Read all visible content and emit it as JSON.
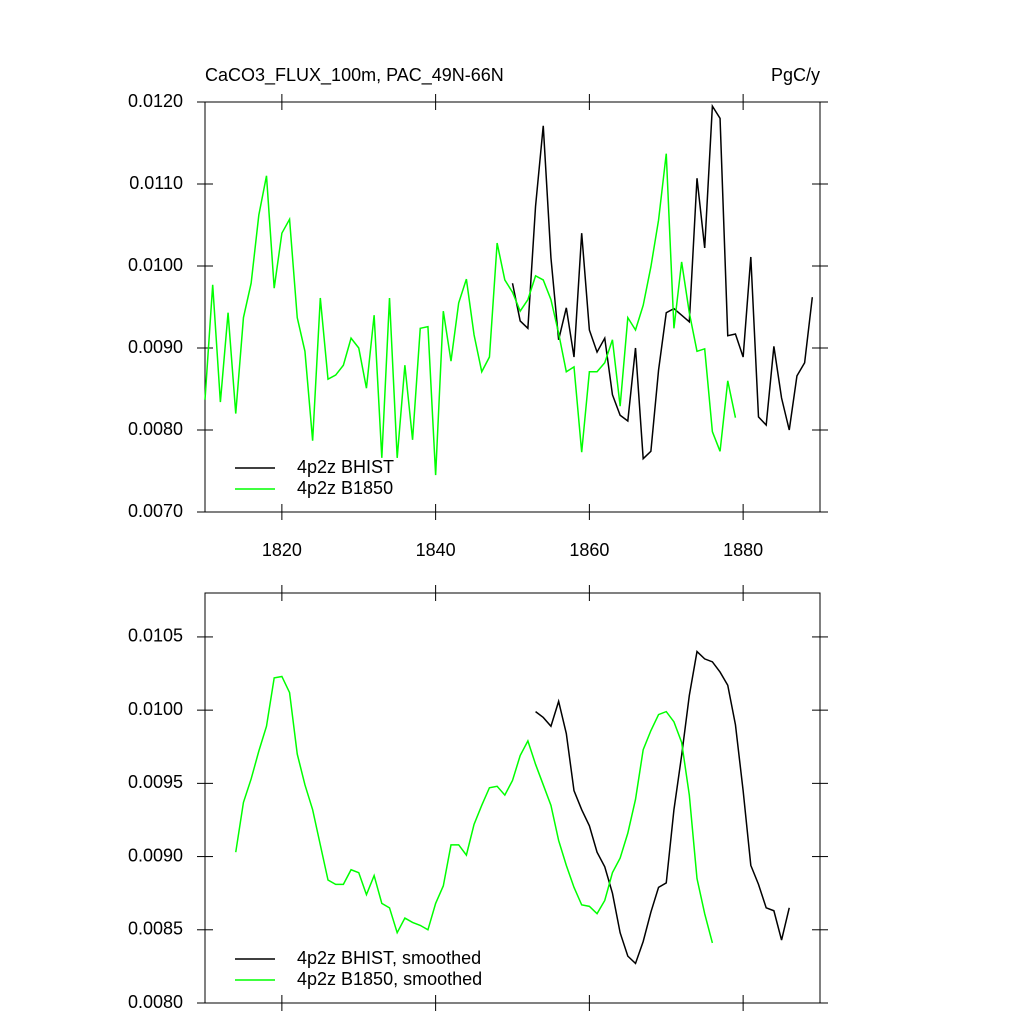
{
  "chart_data": [
    {
      "type": "line",
      "title": "CaCO3_FLUX_100m, PAC_49N-66N",
      "units": "PgC/y",
      "xlim": [
        1810,
        1890
      ],
      "xticks": [
        1820,
        1840,
        1860,
        1880
      ],
      "xtick_labels": true,
      "ylim": [
        0.007,
        0.012
      ],
      "yticks": [
        {
          "value": 0.007,
          "label": "0.0070"
        },
        {
          "value": 0.008,
          "label": "0.0080"
        },
        {
          "value": 0.009,
          "label": "0.0090"
        },
        {
          "value": 0.01,
          "label": "0.0100"
        },
        {
          "value": 0.011,
          "label": "0.0110"
        },
        {
          "value": 0.012,
          "label": "0.0120"
        }
      ],
      "legend": "lower left",
      "series": [
        {
          "name": "4p2z BHIST",
          "color": "#000000",
          "x": [
            1850,
            1851,
            1852,
            1853,
            1854,
            1855,
            1856,
            1857,
            1858,
            1859,
            1860,
            1861,
            1862,
            1863,
            1864,
            1865,
            1866,
            1867,
            1868,
            1869,
            1870,
            1871,
            1872,
            1873,
            1874,
            1875,
            1876,
            1877,
            1878,
            1879,
            1880,
            1881,
            1882,
            1883,
            1884,
            1885,
            1886,
            1887,
            1888,
            1889
          ],
          "values": [
            0.00979,
            0.00933,
            0.00924,
            0.01073,
            0.01171,
            0.0101,
            0.0091,
            0.00949,
            0.00889,
            0.0104,
            0.00922,
            0.00895,
            0.00912,
            0.00843,
            0.00818,
            0.00811,
            0.009,
            0.00765,
            0.00774,
            0.00873,
            0.00943,
            0.00948,
            0.0094,
            0.00932,
            0.01107,
            0.01022,
            0.01195,
            0.0118,
            0.00915,
            0.00917,
            0.00889,
            0.01011,
            0.00816,
            0.00806,
            0.00902,
            0.00839,
            0.008,
            0.00866,
            0.00882,
            0.00962
          ]
        },
        {
          "name": "4p2z B1850",
          "color": "#00ff00",
          "x": [
            1810,
            1811,
            1812,
            1813,
            1814,
            1815,
            1816,
            1817,
            1818,
            1819,
            1820,
            1821,
            1822,
            1823,
            1824,
            1825,
            1826,
            1827,
            1828,
            1829,
            1830,
            1831,
            1832,
            1833,
            1834,
            1835,
            1836,
            1837,
            1838,
            1839,
            1840,
            1841,
            1842,
            1843,
            1844,
            1845,
            1846,
            1847,
            1848,
            1849,
            1850,
            1851,
            1852,
            1853,
            1854,
            1855,
            1856,
            1857,
            1858,
            1859,
            1860,
            1861,
            1862,
            1863,
            1864,
            1865,
            1866,
            1867,
            1868,
            1869,
            1870,
            1871,
            1872,
            1873,
            1874,
            1875,
            1876,
            1877,
            1878,
            1879
          ],
          "values": [
            0.00837,
            0.00977,
            0.00834,
            0.00943,
            0.0082,
            0.00937,
            0.00979,
            0.01062,
            0.0111,
            0.00973,
            0.0104,
            0.01057,
            0.00937,
            0.00896,
            0.00787,
            0.00961,
            0.00862,
            0.00867,
            0.00879,
            0.00912,
            0.009,
            0.00851,
            0.0094,
            0.00766,
            0.00961,
            0.00766,
            0.00879,
            0.00788,
            0.00924,
            0.00926,
            0.00745,
            0.00945,
            0.00884,
            0.00955,
            0.00984,
            0.00916,
            0.00871,
            0.00889,
            0.01028,
            0.00983,
            0.00968,
            0.00945,
            0.00959,
            0.00988,
            0.00983,
            0.00959,
            0.00918,
            0.00871,
            0.00877,
            0.00773,
            0.00871,
            0.00871,
            0.00882,
            0.0091,
            0.00829,
            0.00937,
            0.00922,
            0.00952,
            0.00999,
            0.01056,
            0.01137,
            0.00924,
            0.01005,
            0.00943,
            0.00896,
            0.00899,
            0.00798,
            0.00774,
            0.0086,
            0.00815
          ]
        }
      ]
    },
    {
      "type": "line",
      "xlim": [
        1810,
        1890
      ],
      "xticks": [
        1820,
        1840,
        1860,
        1880
      ],
      "xtick_labels": false,
      "ylim": [
        0.008,
        0.0108
      ],
      "yticks": [
        {
          "value": 0.008,
          "label": "0.0080"
        },
        {
          "value": 0.0085,
          "label": "0.0085"
        },
        {
          "value": 0.009,
          "label": "0.0090"
        },
        {
          "value": 0.0095,
          "label": "0.0095"
        },
        {
          "value": 0.01,
          "label": "0.0100"
        },
        {
          "value": 0.0105,
          "label": "0.0105"
        }
      ],
      "legend": "lower left",
      "series": [
        {
          "name": "4p2z BHIST, smoothed",
          "color": "#000000",
          "x": [
            1853,
            1854,
            1855,
            1856,
            1857,
            1858,
            1859,
            1860,
            1861,
            1862,
            1863,
            1864,
            1865,
            1866,
            1867,
            1868,
            1869,
            1870,
            1871,
            1872,
            1873,
            1874,
            1875,
            1876,
            1877,
            1878,
            1879,
            1880,
            1881,
            1882,
            1883,
            1884,
            1885,
            1886
          ],
          "values": [
            0.00999,
            0.00995,
            0.00989,
            0.01006,
            0.00984,
            0.00945,
            0.00932,
            0.00921,
            0.00903,
            0.00893,
            0.00875,
            0.00848,
            0.00832,
            0.00827,
            0.00842,
            0.00862,
            0.00879,
            0.00882,
            0.00932,
            0.00969,
            0.0101,
            0.0104,
            0.01035,
            0.01033,
            0.01026,
            0.01017,
            0.0099,
            0.00945,
            0.00894,
            0.00881,
            0.00865,
            0.00863,
            0.00843,
            0.00865
          ]
        },
        {
          "name": "4p2z B1850, smoothed",
          "color": "#00ff00",
          "x": [
            1814,
            1815,
            1816,
            1817,
            1818,
            1819,
            1820,
            1821,
            1822,
            1823,
            1824,
            1825,
            1826,
            1827,
            1828,
            1829,
            1830,
            1831,
            1832,
            1833,
            1834,
            1835,
            1836,
            1837,
            1838,
            1839,
            1840,
            1841,
            1842,
            1843,
            1844,
            1845,
            1846,
            1847,
            1848,
            1849,
            1850,
            1851,
            1852,
            1853,
            1854,
            1855,
            1856,
            1857,
            1858,
            1859,
            1860,
            1861,
            1862,
            1863,
            1864,
            1865,
            1866,
            1867,
            1868,
            1869,
            1870,
            1871,
            1872,
            1873,
            1874,
            1875,
            1876
          ],
          "values": [
            0.00903,
            0.00937,
            0.00953,
            0.00972,
            0.00989,
            0.01022,
            0.01023,
            0.01012,
            0.0097,
            0.00949,
            0.00932,
            0.00908,
            0.00884,
            0.00881,
            0.00881,
            0.00891,
            0.00889,
            0.00874,
            0.00887,
            0.00868,
            0.00865,
            0.00848,
            0.00858,
            0.00855,
            0.00853,
            0.0085,
            0.00868,
            0.0088,
            0.00908,
            0.00908,
            0.00901,
            0.00922,
            0.00935,
            0.00947,
            0.00948,
            0.00942,
            0.00952,
            0.00969,
            0.00979,
            0.00963,
            0.00949,
            0.00935,
            0.00911,
            0.00894,
            0.00879,
            0.00867,
            0.00866,
            0.00861,
            0.0087,
            0.00889,
            0.00899,
            0.00916,
            0.00939,
            0.00973,
            0.00986,
            0.00997,
            0.00999,
            0.00992,
            0.00978,
            0.00942,
            0.00885,
            0.00861,
            0.00841
          ]
        }
      ]
    }
  ]
}
